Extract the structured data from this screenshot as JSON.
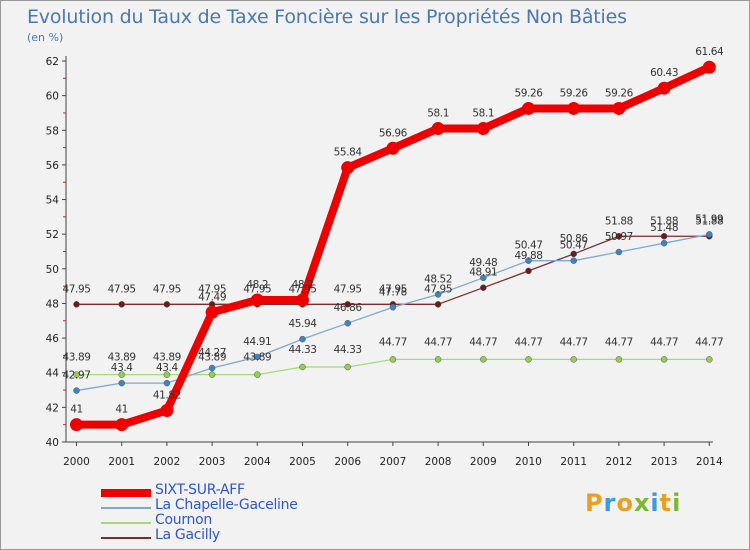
{
  "title": "Evolution du Taux de Taxe Foncière sur les Propriétés Non Bâties",
  "subtitle": "(en %)",
  "logo": {
    "letters": [
      "P",
      "r",
      "o",
      "x",
      "i",
      "t",
      "i"
    ],
    "colors": [
      "#e8a020",
      "#3a9be0",
      "#e8a020",
      "#7ab830",
      "#3a9be0",
      "#e8a020",
      "#7ab830"
    ]
  },
  "chart_data": {
    "type": "line",
    "title": "Evolution du Taux de Taxe Foncière sur les Propriétés Non Bâties",
    "ylabel": "(en %)",
    "xlabel": "",
    "x": [
      "2000",
      "2001",
      "2002",
      "2003",
      "2004",
      "2005",
      "2006",
      "2007",
      "2008",
      "2009",
      "2010",
      "2011",
      "2012",
      "2013",
      "2014"
    ],
    "ylim": [
      40,
      62
    ],
    "yticks": [
      40,
      42,
      44,
      46,
      48,
      50,
      52,
      54,
      56,
      58,
      60,
      62
    ],
    "grid": false,
    "legend_position": "bottom-left",
    "series": [
      {
        "name": "SIXT-SUR-AFF",
        "color": "#ee0000",
        "marker": "#ee0000",
        "values": [
          41,
          41,
          41.82,
          47.49,
          48.2,
          48.2,
          55.84,
          56.96,
          58.1,
          58.1,
          59.26,
          59.26,
          59.26,
          60.43,
          61.64
        ],
        "labels": [
          "41",
          "41",
          "41.82",
          "47.49",
          "48.2",
          "48.2",
          "55.84",
          "56.96",
          "58.1",
          "58.1",
          "59.26",
          "59.26",
          "59.26",
          "60.43",
          "61.64"
        ]
      },
      {
        "name": "La Chapelle-Gaceline",
        "color": "#7fa8cc",
        "marker": "#3a85c8",
        "values": [
          42.97,
          43.4,
          43.4,
          44.27,
          44.91,
          45.94,
          46.86,
          47.78,
          48.52,
          49.48,
          50.47,
          50.47,
          50.97,
          51.48,
          51.99
        ],
        "labels": [
          "42.97",
          "43.4",
          "43.4",
          "44.27",
          "44.91",
          "45.94",
          "46.86",
          "47.78",
          "48.52",
          "49.48",
          "50.47",
          "50.47",
          "50.97",
          "51.48",
          "51.99"
        ]
      },
      {
        "name": "Cournon",
        "color": "#a8d878",
        "marker": "#8fd04c",
        "values": [
          43.89,
          43.89,
          43.89,
          43.89,
          43.89,
          44.33,
          44.33,
          44.77,
          44.77,
          44.77,
          44.77,
          44.77,
          44.77,
          44.77,
          44.77
        ],
        "labels": [
          "43.89",
          "43.89",
          "43.89",
          "43.89",
          "43.89",
          "44.33",
          "44.33",
          "44.77",
          "44.77",
          "44.77",
          "44.77",
          "44.77",
          "44.77",
          "44.77",
          "44.77"
        ]
      },
      {
        "name": "La Gacilly",
        "color": "#7a2c2c",
        "marker": "#6a1c1c",
        "values": [
          47.95,
          47.95,
          47.95,
          47.95,
          47.95,
          47.95,
          47.95,
          47.95,
          47.95,
          48.91,
          49.88,
          50.86,
          51.88,
          51.88,
          51.88
        ],
        "labels": [
          "47.95",
          "47.95",
          "47.95",
          "47.95",
          "47.95",
          "47.95",
          "47.95",
          "47.95",
          "47.95",
          "48.91",
          "49.88",
          "50.86",
          "51.88",
          "51.88",
          "51.88"
        ]
      }
    ]
  }
}
